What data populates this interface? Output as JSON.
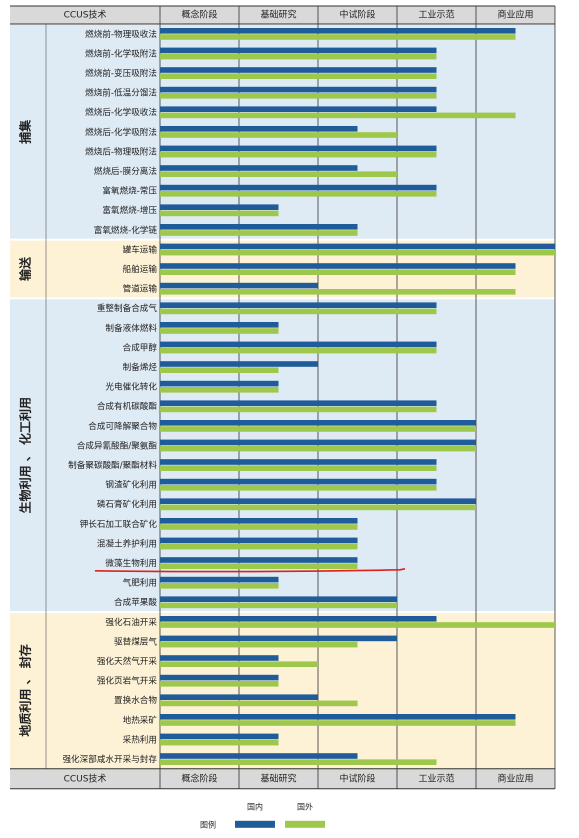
{
  "chart_data": {
    "type": "bar",
    "orientation": "horizontal",
    "header": {
      "left": "CCUS技术",
      "stages": [
        "概念阶段",
        "基础研究",
        "中试阶段",
        "工业示范",
        "商业应用"
      ]
    },
    "groups": [
      {
        "name": "捕集",
        "color": "#deeaf4",
        "start": 0,
        "end": 11
      },
      {
        "name": "输送",
        "color": "#fdf1d6",
        "start": 11,
        "end": 14
      },
      {
        "name": "生物利用 、 化工利用",
        "color": "#deeaf4",
        "start": 14,
        "end": 30
      },
      {
        "name": "地质利用 、 封存",
        "color": "#fdf1d6",
        "start": 30,
        "end": 38
      }
    ],
    "categories": [
      "燃烧前-物理吸收法",
      "燃烧前-化学吸附法",
      "燃烧前-变压吸附法",
      "燃烧前-低温分馏法",
      "燃烧后-化学吸收法",
      "燃烧后-化学吸附法",
      "燃烧后-物理吸附法",
      "燃烧后-膜分离法",
      "富氧燃烧-常压",
      "富氧燃烧-增压",
      "富氧燃烧-化学链",
      "罐车运输",
      "船舶运输",
      "管道运输",
      "重整制备合成气",
      "制备液体燃料",
      "合成甲醇",
      "制备烯烃",
      "光电催化转化",
      "合成有机碳酸酯",
      "合成可降解聚合物",
      "合成异氰酸酯/聚氨酯",
      "制备聚碳酸酯/聚酯材料",
      "钢渣矿化利用",
      "磷石膏矿化利用",
      "钾长石加工联合矿化",
      "混凝土养护利用",
      "微藻生物利用",
      "气肥利用",
      "合成苹果酸",
      "强化石油开采",
      "驱替煤层气",
      "强化天然气开采",
      "强化页岩气开采",
      "置换水合物",
      "地热采矿",
      "采热利用",
      "强化深部咸水开采与封存"
    ],
    "series": [
      {
        "name": "国内",
        "color": "#1f5c99",
        "values": [
          4.5,
          3.5,
          3.5,
          3.5,
          3.5,
          2.5,
          3.5,
          2.5,
          3.5,
          1.5,
          2.5,
          5.0,
          4.5,
          2.0,
          3.5,
          1.5,
          3.5,
          2.0,
          1.5,
          3.5,
          4.0,
          4.0,
          3.5,
          3.5,
          4.0,
          2.5,
          2.5,
          2.5,
          1.5,
          3.0,
          3.5,
          3.0,
          1.5,
          1.5,
          2.0,
          4.5,
          1.5,
          2.5
        ]
      },
      {
        "name": "国外",
        "color": "#9dc84b",
        "values": [
          4.5,
          3.5,
          3.5,
          3.5,
          4.5,
          3.0,
          3.5,
          3.0,
          3.5,
          1.5,
          2.5,
          5.0,
          4.5,
          4.5,
          3.5,
          1.5,
          3.5,
          1.5,
          1.5,
          3.5,
          4.0,
          4.0,
          3.5,
          3.5,
          4.0,
          2.5,
          2.5,
          2.5,
          1.5,
          3.0,
          5.0,
          2.5,
          2.0,
          1.5,
          2.5,
          4.5,
          1.5,
          3.5
        ]
      }
    ],
    "xlim": [
      0,
      5
    ],
    "legend": {
      "title": "图例",
      "position": "bottom-center"
    },
    "annotation": {
      "type": "red-underline",
      "category_index": 27,
      "color": "#e0201b"
    }
  }
}
